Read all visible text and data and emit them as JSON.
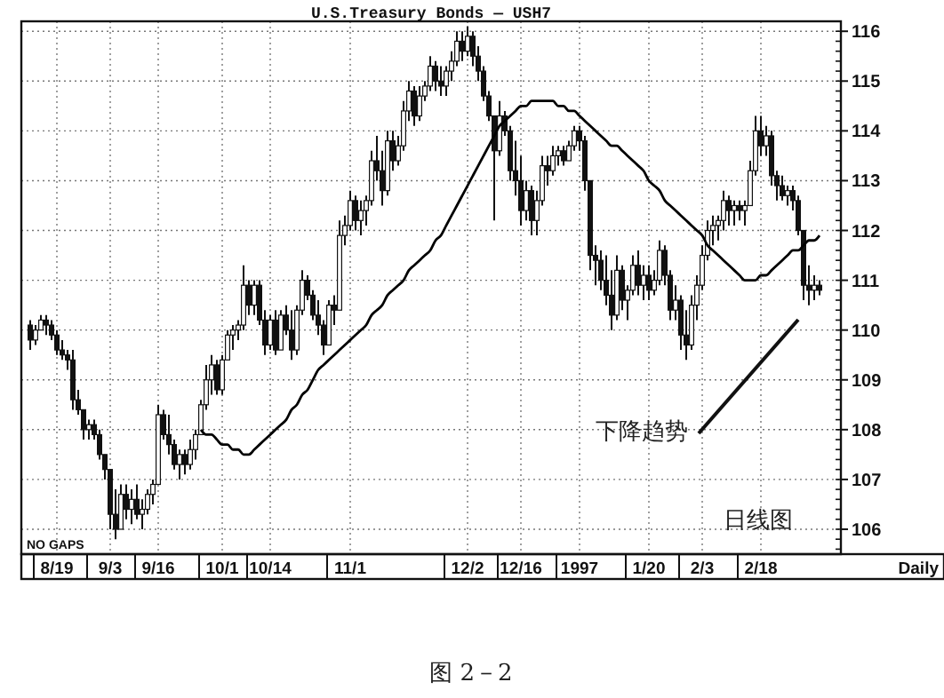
{
  "chart_data": {
    "type": "candlestick",
    "title": "U.S.Treasury Bonds — USH7",
    "categories": [
      null,
      null,
      null,
      null,
      null,
      "8/19",
      null,
      null,
      null,
      null,
      null,
      null,
      null,
      null,
      null,
      "9/3",
      null,
      null,
      null,
      null,
      null,
      null,
      null,
      null,
      "9/16",
      null,
      null,
      null,
      null,
      null,
      null,
      null,
      null,
      null,
      null,
      null,
      "10/1",
      null,
      null,
      null,
      null,
      null,
      null,
      null,
      null,
      "10/14",
      null,
      null,
      null,
      null,
      null,
      null,
      null,
      null,
      null,
      null,
      null,
      null,
      null,
      null,
      "11/1",
      null,
      null,
      null,
      null,
      null,
      null,
      null,
      null,
      null,
      null,
      null,
      null,
      null,
      null,
      null,
      null,
      null,
      null,
      null,
      null,
      null,
      "12/2",
      null,
      null,
      null,
      null,
      null,
      null,
      null,
      null,
      null,
      "12/16",
      null,
      null,
      null,
      null,
      null,
      null,
      null,
      null,
      null,
      null,
      "1997",
      null,
      null,
      null,
      null,
      null,
      null,
      null,
      null,
      null,
      null,
      null,
      null,
      "1/20",
      null,
      null,
      null,
      null,
      null,
      null,
      null,
      null,
      null,
      "2/3",
      null,
      null,
      null,
      null,
      null,
      null,
      null,
      null,
      null,
      null,
      "2/18",
      null,
      null,
      null,
      null,
      null,
      null,
      null,
      null,
      null,
      null,
      null
    ],
    "ohlc": [
      [
        110.1,
        110.2,
        109.6,
        109.8
      ],
      [
        109.8,
        110.1,
        109.7,
        110.0
      ],
      [
        110.0,
        110.3,
        110.0,
        110.2
      ],
      [
        110.2,
        110.3,
        109.9,
        110.1
      ],
      [
        110.1,
        110.2,
        109.8,
        109.9
      ],
      [
        109.9,
        110.0,
        109.5,
        109.6
      ],
      [
        109.6,
        109.8,
        109.4,
        109.5
      ],
      [
        109.5,
        109.6,
        109.2,
        109.4
      ],
      [
        109.4,
        109.6,
        108.4,
        108.6
      ],
      [
        108.6,
        108.8,
        108.3,
        108.4
      ],
      [
        108.4,
        108.4,
        107.8,
        108.0
      ],
      [
        108.0,
        108.2,
        107.8,
        108.1
      ],
      [
        108.1,
        108.2,
        107.8,
        107.9
      ],
      [
        107.9,
        108.0,
        107.4,
        107.5
      ],
      [
        107.5,
        107.5,
        107.0,
        107.2
      ],
      [
        107.2,
        107.2,
        106.0,
        106.3
      ],
      [
        106.3,
        106.8,
        105.8,
        106.0
      ],
      [
        106.0,
        106.9,
        106.0,
        106.7
      ],
      [
        106.7,
        106.9,
        106.2,
        106.4
      ],
      [
        106.4,
        106.8,
        106.1,
        106.6
      ],
      [
        106.6,
        106.9,
        106.2,
        106.3
      ],
      [
        106.3,
        106.6,
        106.0,
        106.4
      ],
      [
        106.4,
        106.8,
        106.3,
        106.7
      ],
      [
        106.7,
        107.0,
        106.5,
        106.9
      ],
      [
        106.9,
        108.5,
        106.9,
        108.3
      ],
      [
        108.3,
        108.4,
        107.8,
        107.9
      ],
      [
        107.9,
        108.3,
        107.5,
        107.7
      ],
      [
        107.7,
        107.8,
        107.2,
        107.3
      ],
      [
        107.3,
        107.6,
        107.0,
        107.5
      ],
      [
        107.5,
        107.6,
        107.1,
        107.3
      ],
      [
        107.3,
        107.8,
        107.2,
        107.6
      ],
      [
        107.6,
        108.0,
        107.4,
        107.9
      ],
      [
        107.9,
        108.6,
        107.9,
        108.5
      ],
      [
        108.5,
        109.3,
        108.4,
        109.0
      ],
      [
        109.0,
        109.5,
        108.7,
        109.3
      ],
      [
        109.3,
        109.4,
        108.7,
        108.8
      ],
      [
        108.8,
        109.5,
        108.7,
        109.4
      ],
      [
        109.4,
        110.0,
        109.4,
        109.9
      ],
      [
        109.9,
        110.1,
        109.6,
        110.0
      ],
      [
        110.0,
        110.2,
        109.8,
        110.1
      ],
      [
        110.1,
        111.3,
        110.0,
        110.9
      ],
      [
        110.9,
        111.0,
        110.3,
        110.5
      ],
      [
        110.5,
        111.0,
        110.3,
        110.9
      ],
      [
        110.9,
        111.0,
        110.1,
        110.2
      ],
      [
        110.2,
        110.4,
        109.5,
        109.7
      ],
      [
        109.7,
        110.3,
        109.6,
        110.2
      ],
      [
        110.2,
        110.4,
        109.5,
        109.6
      ],
      [
        109.6,
        110.4,
        109.6,
        110.3
      ],
      [
        110.3,
        110.5,
        109.9,
        110.0
      ],
      [
        110.0,
        110.4,
        109.4,
        109.6
      ],
      [
        109.6,
        110.5,
        109.5,
        110.4
      ],
      [
        110.4,
        111.2,
        110.3,
        111.0
      ],
      [
        111.0,
        111.1,
        110.6,
        110.7
      ],
      [
        110.7,
        110.8,
        110.2,
        110.3
      ],
      [
        110.3,
        110.6,
        109.9,
        110.1
      ],
      [
        110.1,
        110.2,
        109.5,
        109.7
      ],
      [
        109.7,
        110.6,
        109.7,
        110.5
      ],
      [
        110.5,
        110.7,
        110.1,
        110.4
      ],
      [
        110.4,
        112.2,
        110.4,
        111.9
      ],
      [
        111.9,
        112.3,
        111.7,
        112.1
      ],
      [
        112.1,
        112.8,
        112.0,
        112.6
      ],
      [
        112.6,
        112.7,
        112.0,
        112.2
      ],
      [
        112.2,
        112.6,
        111.9,
        112.4
      ],
      [
        112.4,
        112.7,
        112.1,
        112.6
      ],
      [
        112.6,
        113.6,
        112.5,
        113.4
      ],
      [
        113.4,
        113.9,
        113.0,
        113.2
      ],
      [
        113.2,
        113.6,
        112.5,
        112.8
      ],
      [
        112.8,
        114.0,
        112.7,
        113.8
      ],
      [
        113.8,
        114.0,
        113.2,
        113.4
      ],
      [
        113.4,
        113.9,
        113.3,
        113.7
      ],
      [
        113.7,
        114.6,
        113.6,
        114.4
      ],
      [
        114.4,
        115.0,
        114.2,
        114.8
      ],
      [
        114.8,
        114.9,
        114.1,
        114.3
      ],
      [
        114.3,
        114.9,
        114.2,
        114.7
      ],
      [
        114.7,
        115.0,
        114.6,
        114.9
      ],
      [
        114.9,
        115.5,
        114.8,
        115.3
      ],
      [
        115.3,
        115.4,
        114.8,
        115.0
      ],
      [
        115.0,
        115.3,
        114.7,
        114.9
      ],
      [
        114.9,
        115.3,
        114.7,
        115.2
      ],
      [
        115.2,
        115.6,
        115.0,
        115.4
      ],
      [
        115.4,
        116.0,
        115.3,
        115.8
      ],
      [
        115.8,
        116.0,
        115.4,
        115.6
      ],
      [
        115.6,
        116.1,
        115.5,
        115.9
      ],
      [
        115.9,
        116.0,
        115.3,
        115.5
      ],
      [
        115.5,
        115.7,
        115.0,
        115.2
      ],
      [
        115.2,
        115.3,
        114.6,
        114.7
      ],
      [
        114.7,
        114.8,
        114.2,
        114.3
      ],
      [
        114.3,
        114.3,
        112.2,
        113.6
      ],
      [
        113.6,
        114.6,
        113.5,
        114.3
      ],
      [
        114.3,
        114.4,
        113.9,
        114.0
      ],
      [
        114.0,
        114.1,
        113.0,
        113.2
      ],
      [
        113.2,
        113.8,
        112.7,
        113.0
      ],
      [
        113.0,
        113.5,
        112.1,
        112.4
      ],
      [
        112.4,
        113.0,
        112.2,
        112.8
      ],
      [
        112.8,
        112.9,
        111.9,
        112.2
      ],
      [
        112.2,
        112.8,
        111.9,
        112.6
      ],
      [
        112.6,
        113.5,
        112.5,
        113.3
      ],
      [
        113.3,
        113.5,
        112.9,
        113.2
      ],
      [
        113.2,
        113.7,
        113.1,
        113.5
      ],
      [
        113.5,
        113.7,
        113.3,
        113.6
      ],
      [
        113.6,
        113.7,
        113.3,
        113.4
      ],
      [
        113.4,
        113.8,
        113.4,
        113.7
      ],
      [
        113.7,
        114.1,
        113.6,
        114.0
      ],
      [
        114.0,
        114.1,
        113.6,
        113.8
      ],
      [
        113.8,
        113.9,
        112.8,
        113.0
      ],
      [
        113.0,
        113.0,
        111.2,
        111.5
      ],
      [
        111.5,
        111.7,
        110.9,
        111.4
      ],
      [
        111.4,
        111.6,
        110.8,
        111.0
      ],
      [
        111.0,
        111.5,
        110.5,
        110.7
      ],
      [
        110.7,
        111.2,
        110.0,
        110.3
      ],
      [
        110.3,
        111.5,
        110.2,
        111.2
      ],
      [
        111.2,
        111.3,
        110.4,
        110.6
      ],
      [
        110.6,
        110.9,
        110.2,
        110.8
      ],
      [
        110.8,
        111.5,
        110.7,
        111.3
      ],
      [
        111.3,
        111.6,
        110.7,
        110.9
      ],
      [
        110.9,
        111.3,
        110.6,
        111.1
      ],
      [
        111.1,
        111.3,
        110.6,
        110.8
      ],
      [
        110.8,
        111.2,
        110.7,
        111.0
      ],
      [
        111.0,
        111.8,
        110.9,
        111.6
      ],
      [
        111.6,
        111.7,
        110.9,
        111.1
      ],
      [
        111.1,
        111.2,
        110.2,
        110.4
      ],
      [
        110.4,
        110.9,
        110.2,
        110.6
      ],
      [
        110.6,
        110.7,
        109.6,
        109.9
      ],
      [
        109.9,
        110.4,
        109.4,
        109.7
      ],
      [
        109.7,
        110.7,
        109.6,
        110.5
      ],
      [
        110.5,
        111.1,
        110.2,
        110.9
      ],
      [
        110.9,
        111.7,
        110.8,
        111.5
      ],
      [
        111.5,
        112.2,
        111.4,
        112.0
      ],
      [
        112.0,
        112.3,
        111.7,
        112.1
      ],
      [
        112.1,
        112.3,
        111.8,
        112.2
      ],
      [
        112.2,
        112.8,
        112.0,
        112.6
      ],
      [
        112.6,
        112.7,
        112.1,
        112.4
      ],
      [
        112.4,
        112.6,
        112.1,
        112.5
      ],
      [
        112.5,
        112.6,
        112.2,
        112.4
      ],
      [
        112.4,
        112.6,
        112.1,
        112.5
      ],
      [
        112.5,
        113.4,
        112.5,
        113.2
      ],
      [
        113.2,
        114.3,
        113.1,
        114.0
      ],
      [
        114.0,
        114.3,
        113.5,
        113.7
      ],
      [
        113.7,
        114.1,
        113.5,
        113.9
      ],
      [
        113.9,
        114.0,
        112.9,
        113.1
      ],
      [
        113.1,
        113.2,
        112.6,
        112.9
      ],
      [
        112.9,
        113.1,
        112.6,
        112.7
      ],
      [
        112.7,
        112.9,
        112.5,
        112.8
      ],
      [
        112.8,
        112.9,
        112.4,
        112.6
      ],
      [
        112.6,
        112.7,
        111.9,
        112.0
      ],
      [
        112.0,
        112.0,
        110.6,
        110.9
      ],
      [
        110.9,
        111.3,
        110.5,
        110.8
      ],
      [
        110.8,
        111.1,
        110.6,
        110.9
      ],
      [
        110.9,
        111.0,
        110.7,
        110.8
      ]
    ],
    "series": [
      {
        "type": "line",
        "color": "#000000",
        "values": [
          null,
          null,
          null,
          null,
          null,
          null,
          null,
          null,
          null,
          null,
          null,
          null,
          null,
          null,
          null,
          null,
          null,
          null,
          null,
          null,
          null,
          null,
          null,
          null,
          null,
          null,
          null,
          null,
          null,
          null,
          null,
          null,
          108.0,
          107.9,
          107.9,
          107.8,
          107.7,
          107.7,
          107.6,
          107.6,
          107.5,
          107.5,
          107.6,
          107.7,
          107.8,
          107.9,
          108.0,
          108.1,
          108.2,
          108.4,
          108.5,
          108.7,
          108.8,
          109.0,
          109.2,
          109.3,
          109.4,
          109.5,
          109.6,
          109.7,
          109.8,
          109.9,
          110.0,
          110.1,
          110.3,
          110.4,
          110.5,
          110.7,
          110.8,
          110.9,
          111.0,
          111.2,
          111.3,
          111.4,
          111.5,
          111.6,
          111.8,
          111.9,
          112.1,
          112.3,
          112.5,
          112.7,
          112.9,
          113.1,
          113.3,
          113.5,
          113.7,
          113.9,
          114.1,
          114.2,
          114.3,
          114.4,
          114.5,
          114.5,
          114.6,
          114.6,
          114.6,
          114.6,
          114.6,
          114.5,
          114.5,
          114.4,
          114.4,
          114.3,
          114.2,
          114.1,
          114.0,
          113.9,
          113.8,
          113.7,
          113.7,
          113.6,
          113.5,
          113.4,
          113.3,
          113.2,
          113.0,
          112.9,
          112.8,
          112.6,
          112.5,
          112.4,
          112.3,
          112.2,
          112.1,
          112.0,
          111.9,
          111.7,
          111.6,
          111.5,
          111.4,
          111.3,
          111.2,
          111.1,
          111.0,
          111.0,
          111.0,
          111.1,
          111.1,
          111.2,
          111.3,
          111.4,
          111.5,
          111.6,
          111.6,
          111.7,
          111.8,
          111.8,
          111.9
        ]
      }
    ],
    "ylim": [
      105.5,
      116.2
    ],
    "yticks": [
      106,
      107,
      108,
      109,
      110,
      111,
      112,
      113,
      114,
      115,
      116
    ],
    "grid": true,
    "annotations": [
      "NO GAPS",
      "下降趋势",
      "日线图",
      "Daily",
      "图 2－2"
    ]
  }
}
